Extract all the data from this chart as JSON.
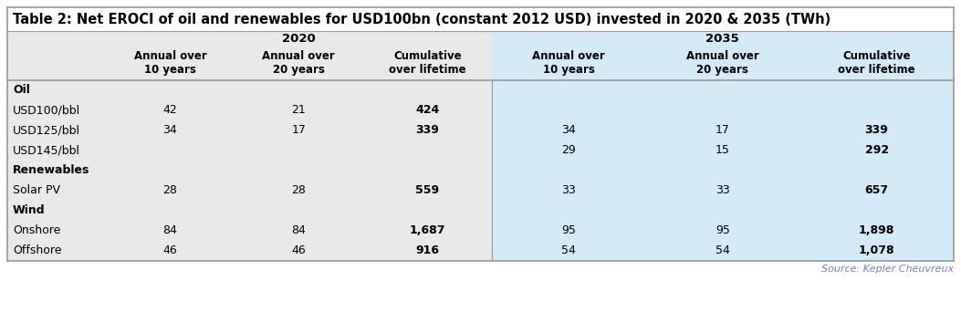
{
  "title": "Table 2: Net EROCI of oil and renewables for USD100bn (constant 2012 USD) invested in 2020 & 2035 (TWh)",
  "source": "Source: Kepler Cheuvreux",
  "col_header_year_2020": "2020",
  "col_header_year_2035": "2035",
  "col_headers": [
    "Annual over\n10 years",
    "Annual over\n20 years",
    "Cumulative\nover lifetime",
    "Annual over\n10 years",
    "Annual over\n20 years",
    "Cumulative\nover lifetime"
  ],
  "rows": [
    {
      "label": "Oil",
      "bold": true,
      "values": [
        "",
        "",
        "",
        "",
        "",
        ""
      ]
    },
    {
      "label": "USD100/bbl",
      "bold": false,
      "values": [
        "42",
        "21",
        "424",
        "",
        "",
        ""
      ]
    },
    {
      "label": "USD125/bbl",
      "bold": false,
      "values": [
        "34",
        "17",
        "339",
        "34",
        "17",
        "339"
      ]
    },
    {
      "label": "USD145/bbl",
      "bold": false,
      "values": [
        "",
        "",
        "",
        "29",
        "15",
        "292"
      ]
    },
    {
      "label": "Renewables",
      "bold": true,
      "values": [
        "",
        "",
        "",
        "",
        "",
        ""
      ]
    },
    {
      "label": "Solar PV",
      "bold": false,
      "values": [
        "28",
        "28",
        "559",
        "33",
        "33",
        "657"
      ]
    },
    {
      "label": "Wind",
      "bold": true,
      "values": [
        "",
        "",
        "",
        "",
        "",
        ""
      ]
    },
    {
      "label": "Onshore",
      "bold": false,
      "values": [
        "84",
        "84",
        "1,687",
        "95",
        "95",
        "1,898"
      ]
    },
    {
      "label": "Offshore",
      "bold": false,
      "values": [
        "46",
        "46",
        "916",
        "54",
        "54",
        "1,078"
      ]
    }
  ],
  "bg_left": "#e9e9e9",
  "bg_right": "#d4eaf7",
  "title_bg": "#ffffff",
  "outer_bg": "#ffffff",
  "text_color": "#000000",
  "source_color": "#7f7fbf",
  "border_color": "#999999",
  "title_fontsize": 10.5,
  "header_fontsize": 8.5,
  "cell_fontsize": 9,
  "source_fontsize": 8
}
